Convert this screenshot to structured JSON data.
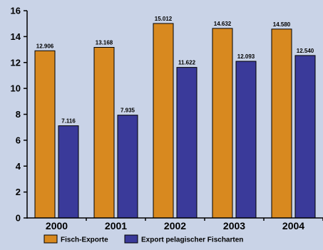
{
  "chart_data": {
    "type": "bar",
    "title": "",
    "xlabel": "",
    "ylabel": "",
    "ylim": [
      0,
      16
    ],
    "yticks": [
      0,
      2,
      4,
      6,
      8,
      10,
      12,
      14,
      16
    ],
    "categories": [
      "2000",
      "2001",
      "2002",
      "2003",
      "2004"
    ],
    "series": [
      {
        "name": "Fisch-Exporte",
        "color": "#d8891f",
        "values": [
          12.906,
          13.168,
          15.012,
          14.632,
          14.58
        ],
        "labels": [
          "12.906",
          "13.168",
          "15.012",
          "14.632",
          "14.580"
        ]
      },
      {
        "name": "Export pelagischer Fischarten",
        "color": "#3a3a9a",
        "values": [
          7.116,
          7.935,
          11.622,
          12.093,
          12.54
        ],
        "labels": [
          "7.116",
          "7.935",
          "11.622",
          "12.093",
          "12.540"
        ]
      }
    ],
    "grid": false,
    "legend_position": "bottom"
  }
}
